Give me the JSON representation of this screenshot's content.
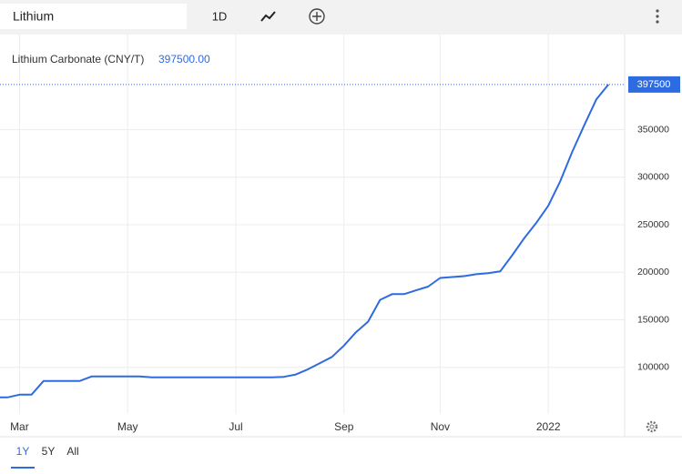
{
  "toolbar": {
    "search": "Lithium",
    "interval": "1D"
  },
  "range_buttons": [
    "1Y",
    "5Y",
    "All"
  ],
  "chart_data": {
    "type": "line",
    "title": "Lithium Carbonate (CNY/T)",
    "last_value_label": "397500.00",
    "categories": [
      null,
      null,
      "Mar",
      null,
      null,
      null,
      null,
      null,
      null,
      null,
      null,
      "May",
      null,
      null,
      null,
      null,
      null,
      null,
      null,
      null,
      "Jul",
      null,
      null,
      null,
      null,
      null,
      null,
      null,
      null,
      "Sep",
      null,
      null,
      null,
      null,
      null,
      null,
      null,
      "Nov",
      null,
      null,
      null,
      null,
      null,
      null,
      null,
      null,
      "2022",
      null,
      null,
      null,
      null,
      null
    ],
    "series": [
      {
        "name": "Lithium Carbonate (CNY/T)",
        "color": "#2f6be0",
        "values": [
          68400,
          68400,
          71300,
          71300,
          85600,
          85600,
          85600,
          85600,
          90400,
          90400,
          90400,
          90400,
          90400,
          89500,
          89500,
          89500,
          89500,
          89500,
          89500,
          89500,
          89500,
          89500,
          89500,
          89500,
          90000,
          92500,
          98000,
          104500,
          111000,
          123000,
          137000,
          148000,
          171000,
          177000,
          177000,
          181000,
          185000,
          194000,
          195000,
          196000,
          198000,
          199000,
          201000,
          218000,
          236000,
          252000,
          270000,
          296000,
          327000,
          355000,
          382000,
          397500
        ]
      }
    ],
    "ylim": [
      51000,
      450000
    ],
    "yticks": [
      100000,
      150000,
      200000,
      250000,
      300000,
      350000
    ],
    "grid": true
  }
}
